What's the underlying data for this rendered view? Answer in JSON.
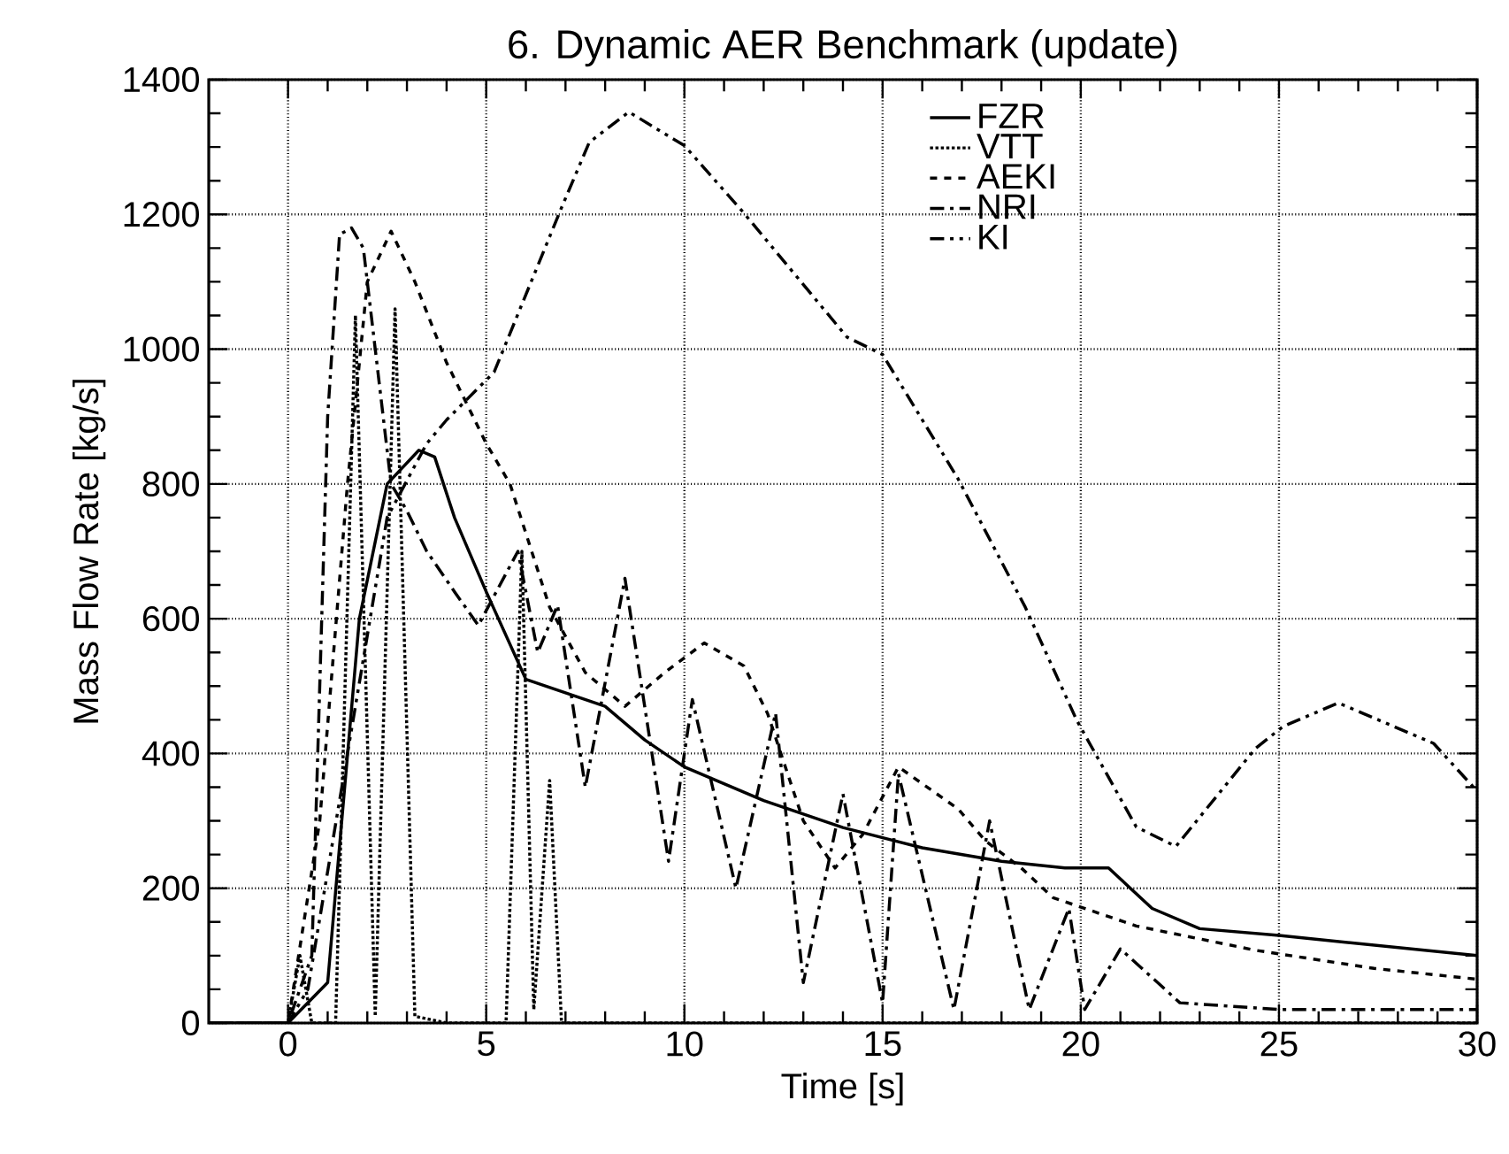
{
  "chart_data": {
    "type": "line",
    "title": "6. Dynamic AER Benchmark (update)",
    "xlabel": "Time [s]",
    "ylabel": "Mass Flow Rate [kg/s]",
    "xlim": [
      -2,
      30
    ],
    "ylim": [
      0,
      1400
    ],
    "xticks": [
      0,
      5,
      10,
      15,
      20,
      25,
      30
    ],
    "yticks": [
      0,
      200,
      400,
      600,
      800,
      1000,
      1200,
      1400
    ],
    "grid": true,
    "legend": "top",
    "series": [
      {
        "name": "FZR",
        "color": "#000000",
        "line_style": "solid",
        "x": [
          -2,
          -1,
          0,
          0.5,
          1.0,
          1.8,
          2.5,
          3.3,
          3.7,
          4.2,
          5,
          6,
          7,
          8,
          9,
          10,
          12,
          14,
          16,
          18,
          19.6,
          20.7,
          21.8,
          23,
          25,
          30
        ],
        "values": [
          0,
          0,
          0,
          30,
          60,
          600,
          800,
          850,
          840,
          750,
          640,
          510,
          490,
          470,
          420,
          380,
          330,
          290,
          260,
          240,
          230,
          230,
          170,
          140,
          130,
          100
        ]
      },
      {
        "name": "VTT",
        "color": "#000000",
        "line_style": "dotted",
        "x": [
          -2,
          0,
          0.3,
          0.6,
          1.2,
          1.7,
          2.2,
          2.7,
          3.2,
          4,
          5.5,
          5.9,
          6.2,
          6.6,
          6.9,
          30
        ],
        "values": [
          0,
          0,
          100,
          0,
          0,
          1050,
          10,
          1060,
          10,
          0,
          0,
          700,
          20,
          360,
          0,
          0
        ]
      },
      {
        "name": "AEKI",
        "color": "#000000",
        "line_style": "dashed",
        "x": [
          -2,
          0,
          0.8,
          1.5,
          2.0,
          2.6,
          3.2,
          4,
          5,
          5.6,
          6.6,
          7.5,
          8.5,
          9.5,
          10.5,
          11.5,
          12.1,
          13,
          13.8,
          14.5,
          15.4,
          16.9,
          17.6,
          18.5,
          19.3,
          21.4,
          24.4,
          27.4,
          30
        ],
        "values": [
          0,
          0,
          300,
          800,
          1100,
          1175,
          1100,
          980,
          860,
          800,
          617,
          520,
          470,
          520,
          564,
          530,
          459,
          300,
          230,
          280,
          380,
          318,
          270,
          230,
          186,
          144,
          108,
          81,
          65
        ]
      },
      {
        "name": "NRI",
        "color": "#000000",
        "line_style": "dashdot",
        "x": [
          -2,
          0,
          0.6,
          1.0,
          1.3,
          1.6,
          1.9,
          2.2,
          2.6,
          3.0,
          3.5,
          4.2,
          4.8,
          5.8,
          6.3,
          6.8,
          7.5,
          8.5,
          9.6,
          10.2,
          11.3,
          12.3,
          13.0,
          14.0,
          15.0,
          15.4,
          16.8,
          17.7,
          18.7,
          19.7,
          20.1,
          21.0,
          22.5,
          25,
          30
        ],
        "values": [
          0,
          0,
          100,
          900,
          1170,
          1180,
          1150,
          1000,
          800,
          760,
          700,
          640,
          590,
          700,
          550,
          620,
          350,
          660,
          240,
          480,
          200,
          460,
          60,
          340,
          30,
          370,
          20,
          300,
          20,
          170,
          20,
          110,
          30,
          20,
          20
        ]
      },
      {
        "name": "KI",
        "color": "#000000",
        "line_style": "dashdotdot",
        "x": [
          -2,
          0,
          0.5,
          1.5,
          2.5,
          3.5,
          4.0,
          5.2,
          6.9,
          7.6,
          8.6,
          10,
          11.5,
          14.1,
          15,
          16.9,
          18.6,
          19.9,
          21.4,
          22.4,
          24.4,
          25.1,
          26.5,
          28.9,
          30
        ],
        "values": [
          0,
          0,
          50,
          400,
          750,
          860,
          895,
          966,
          1210,
          1307,
          1352,
          1302,
          1202,
          1018,
          992,
          808,
          617,
          449,
          291,
          262,
          407,
          440,
          475,
          415,
          344
        ]
      }
    ]
  }
}
